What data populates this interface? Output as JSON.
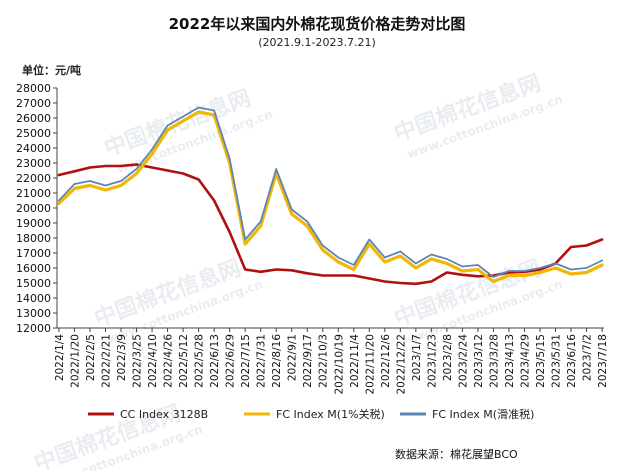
{
  "title": "2022年以来国内外棉花现货价格走势对比图",
  "subtitle": "(2021.9.1-2023.7.21)",
  "unit_label": "单位：元/吨",
  "source": "数据来源：棉花展望BCO",
  "watermark": {
    "cn": "中国棉花信息网",
    "en": "www.cottonchina.org.cn"
  },
  "colors": {
    "cc": "#b01010",
    "fc1": "#f2b705",
    "fc2": "#5b86b3"
  },
  "chart_data": {
    "type": "line",
    "xlabel": "",
    "ylabel": "",
    "ylim": [
      12000,
      28000
    ],
    "y_ticks": [
      12000,
      13000,
      14000,
      15000,
      16000,
      17000,
      18000,
      19000,
      20000,
      21000,
      22000,
      23000,
      24000,
      25000,
      26000,
      27000,
      28000
    ],
    "x_tick_labels": [
      "2022/1/4",
      "2022/1/20",
      "2022/2/5",
      "2022/2/21",
      "2022/3/9",
      "2022/3/25",
      "2022/4/10",
      "2022/4/26",
      "2022/5/12",
      "2022/5/28",
      "2022/6/13",
      "2022/6/29",
      "2022/7/15",
      "2022/7/31",
      "2022/8/16",
      "2022/9/1",
      "2022/9/17",
      "2022/10/3",
      "2022/10/19",
      "2022/11/4",
      "2022/11/20",
      "2022/12/6",
      "2022/12/22",
      "2023/1/7",
      "2023/1/23",
      "2023/2/8",
      "2023/2/24",
      "2023/3/12",
      "2023/3/28",
      "2023/4/13",
      "2023/4/29",
      "2023/5/15",
      "2023/5/31",
      "2023/6/16",
      "2023/7/2",
      "2023/7/18"
    ],
    "grid": false,
    "legend_position": "bottom",
    "series": [
      {
        "name": "CC Index 3128B",
        "color": "#b01010",
        "points": [
          [
            "2022/1/4",
            22200
          ],
          [
            "2022/1/20",
            22450
          ],
          [
            "2022/2/5",
            22700
          ],
          [
            "2022/2/21",
            22800
          ],
          [
            "2022/3/9",
            22800
          ],
          [
            "2022/3/25",
            22900
          ],
          [
            "2022/4/10",
            22700
          ],
          [
            "2022/4/26",
            22500
          ],
          [
            "2022/5/12",
            22300
          ],
          [
            "2022/5/28",
            21900
          ],
          [
            "2022/6/13",
            20500
          ],
          [
            "2022/6/29",
            18400
          ],
          [
            "2022/7/15",
            15900
          ],
          [
            "2022/7/31",
            15750
          ],
          [
            "2022/8/16",
            15900
          ],
          [
            "2022/9/1",
            15850
          ],
          [
            "2022/9/17",
            15650
          ],
          [
            "2022/10/3",
            15500
          ],
          [
            "2022/10/19",
            15500
          ],
          [
            "2022/11/4",
            15500
          ],
          [
            "2022/11/20",
            15300
          ],
          [
            "2022/12/6",
            15100
          ],
          [
            "2022/12/22",
            15000
          ],
          [
            "2023/1/7",
            14950
          ],
          [
            "2023/1/23",
            15100
          ],
          [
            "2023/2/8",
            15700
          ],
          [
            "2023/2/24",
            15550
          ],
          [
            "2023/3/12",
            15450
          ],
          [
            "2023/3/28",
            15500
          ],
          [
            "2023/4/13",
            15700
          ],
          [
            "2023/4/29",
            15750
          ],
          [
            "2023/5/15",
            15900
          ],
          [
            "2023/5/31",
            16300
          ],
          [
            "2023/6/16",
            17400
          ],
          [
            "2023/7/2",
            17500
          ],
          [
            "2023/7/18",
            17900
          ]
        ]
      },
      {
        "name": "FC Index M(1%关税)",
        "color": "#f2b705",
        "points": [
          [
            "2022/1/4",
            20300
          ],
          [
            "2022/1/20",
            21300
          ],
          [
            "2022/2/5",
            21500
          ],
          [
            "2022/2/21",
            21200
          ],
          [
            "2022/3/9",
            21500
          ],
          [
            "2022/3/25",
            22300
          ],
          [
            "2022/4/10",
            23600
          ],
          [
            "2022/4/26",
            25200
          ],
          [
            "2022/5/12",
            25800
          ],
          [
            "2022/5/28",
            26400
          ],
          [
            "2022/6/13",
            26200
          ],
          [
            "2022/6/29",
            23000
          ],
          [
            "2022/7/15",
            17600
          ],
          [
            "2022/7/31",
            18800
          ],
          [
            "2022/8/16",
            22300
          ],
          [
            "2022/9/1",
            19600
          ],
          [
            "2022/9/17",
            18800
          ],
          [
            "2022/10/3",
            17200
          ],
          [
            "2022/10/19",
            16400
          ],
          [
            "2022/11/4",
            15900
          ],
          [
            "2022/11/20",
            17600
          ],
          [
            "2022/12/6",
            16400
          ],
          [
            "2022/12/22",
            16800
          ],
          [
            "2023/1/7",
            16000
          ],
          [
            "2023/1/23",
            16600
          ],
          [
            "2023/2/8",
            16300
          ],
          [
            "2023/2/24",
            15800
          ],
          [
            "2023/3/12",
            15900
          ],
          [
            "2023/3/28",
            15100
          ],
          [
            "2023/4/13",
            15500
          ],
          [
            "2023/4/29",
            15500
          ],
          [
            "2023/5/15",
            15700
          ],
          [
            "2023/5/31",
            16000
          ],
          [
            "2023/6/16",
            15600
          ],
          [
            "2023/7/2",
            15700
          ],
          [
            "2023/7/18",
            16200
          ]
        ]
      },
      {
        "name": "FC Index M(滑准税)",
        "color": "#5b86b3",
        "points": [
          [
            "2022/1/4",
            20500
          ],
          [
            "2022/1/20",
            21600
          ],
          [
            "2022/2/5",
            21800
          ],
          [
            "2022/2/21",
            21500
          ],
          [
            "2022/3/9",
            21800
          ],
          [
            "2022/3/25",
            22600
          ],
          [
            "2022/4/10",
            23900
          ],
          [
            "2022/4/26",
            25500
          ],
          [
            "2022/5/12",
            26100
          ],
          [
            "2022/5/28",
            26700
          ],
          [
            "2022/6/13",
            26500
          ],
          [
            "2022/6/29",
            23300
          ],
          [
            "2022/7/15",
            17900
          ],
          [
            "2022/7/31",
            19100
          ],
          [
            "2022/8/16",
            22600
          ],
          [
            "2022/9/1",
            19900
          ],
          [
            "2022/9/17",
            19100
          ],
          [
            "2022/10/3",
            17500
          ],
          [
            "2022/10/19",
            16700
          ],
          [
            "2022/11/4",
            16200
          ],
          [
            "2022/11/20",
            17900
          ],
          [
            "2022/12/6",
            16700
          ],
          [
            "2022/12/22",
            17100
          ],
          [
            "2023/1/7",
            16300
          ],
          [
            "2023/1/23",
            16900
          ],
          [
            "2023/2/8",
            16600
          ],
          [
            "2023/2/24",
            16100
          ],
          [
            "2023/3/12",
            16200
          ],
          [
            "2023/3/28",
            15400
          ],
          [
            "2023/4/13",
            15800
          ],
          [
            "2023/4/29",
            15800
          ],
          [
            "2023/5/15",
            16000
          ],
          [
            "2023/5/31",
            16300
          ],
          [
            "2023/6/16",
            15900
          ],
          [
            "2023/7/2",
            16000
          ],
          [
            "2023/7/18",
            16500
          ]
        ]
      }
    ]
  }
}
